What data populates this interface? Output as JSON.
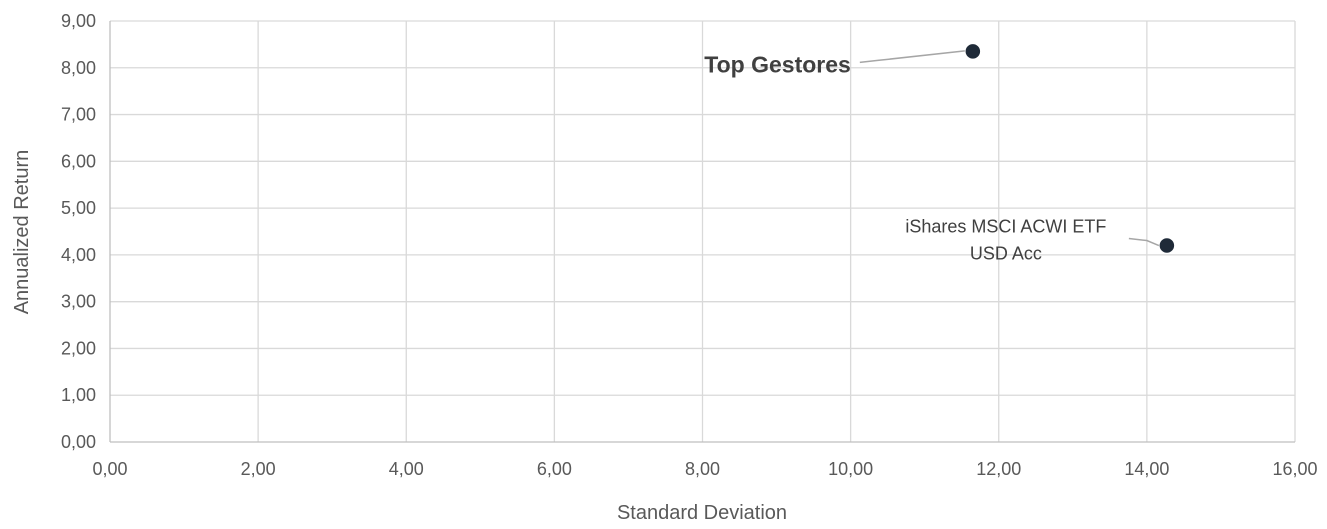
{
  "chart_data": {
    "type": "scatter",
    "xlabel": "Standard Deviation",
    "ylabel": "Annualized Return",
    "xlim": [
      0,
      16
    ],
    "ylim": [
      0,
      9
    ],
    "x_ticks": [
      "0,00",
      "2,00",
      "4,00",
      "6,00",
      "8,00",
      "10,00",
      "12,00",
      "14,00",
      "16,00"
    ],
    "y_ticks": [
      "0,00",
      "1,00",
      "2,00",
      "3,00",
      "4,00",
      "5,00",
      "6,00",
      "7,00",
      "8,00",
      "9,00"
    ],
    "grid": true,
    "legend": "none",
    "marker_color": "#1f2a38",
    "points": [
      {
        "x": 11.65,
        "y": 8.35,
        "label": [
          "Top Gestores"
        ],
        "label_bold": true
      },
      {
        "x": 14.27,
        "y": 4.2,
        "label": [
          "iShares MSCI ACWI ETF",
          "USD Acc"
        ],
        "label_bold": false
      }
    ]
  }
}
